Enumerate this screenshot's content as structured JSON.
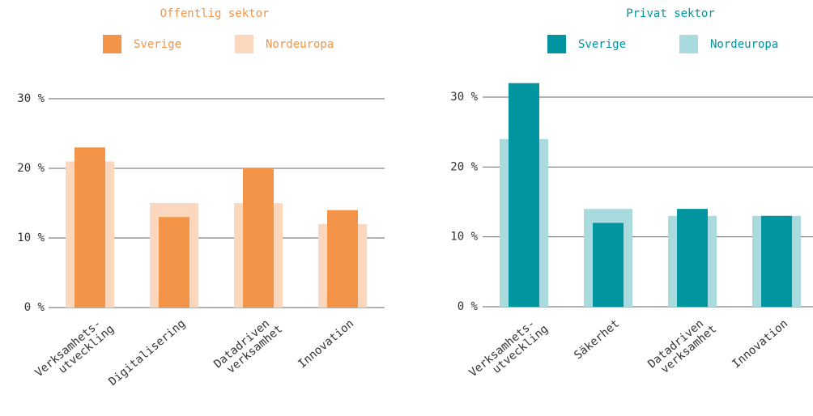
{
  "chart_data": [
    {
      "type": "bar",
      "title": "Offentlig sektor",
      "title_color": "#f39448",
      "categories": [
        [
          "Verksamhets-",
          "utveckling"
        ],
        [
          "Digitalisering"
        ],
        [
          "Datadriven",
          "verksamhet"
        ],
        [
          "Innovation"
        ]
      ],
      "series": [
        {
          "name": "Sverige",
          "color": "#f39448",
          "values": [
            23,
            13,
            20,
            14
          ]
        },
        {
          "name": "Nordeuropa",
          "color": "#fad7bd",
          "values": [
            21,
            15,
            15,
            12
          ]
        }
      ],
      "ylim": [
        0,
        30
      ],
      "yticks": [
        {
          "value": 0,
          "label": "0 %"
        },
        {
          "value": 10,
          "label": "10 %"
        },
        {
          "value": 20,
          "label": "20 %"
        },
        {
          "value": 30,
          "label": "30 %"
        }
      ],
      "grid": true
    },
    {
      "type": "bar",
      "title": "Privat sektor",
      "title_color": "#00959f",
      "categories": [
        [
          "Verksamhets-",
          "utveckling"
        ],
        [
          "Säkerhet"
        ],
        [
          "Datadriven",
          "verksamhet"
        ],
        [
          "Innovation"
        ]
      ],
      "series": [
        {
          "name": "Sverige",
          "color": "#00959f",
          "values": [
            32,
            12,
            14,
            13
          ]
        },
        {
          "name": "Nordeuropa",
          "color": "#a9dadd",
          "values": [
            24,
            14,
            13,
            13
          ]
        }
      ],
      "ylim": [
        0,
        30
      ],
      "yticks": [
        {
          "value": 0,
          "label": "0 %"
        },
        {
          "value": 10,
          "label": "10 %"
        },
        {
          "value": 20,
          "label": "20 %"
        },
        {
          "value": 30,
          "label": "30 %"
        }
      ],
      "grid": true
    }
  ]
}
